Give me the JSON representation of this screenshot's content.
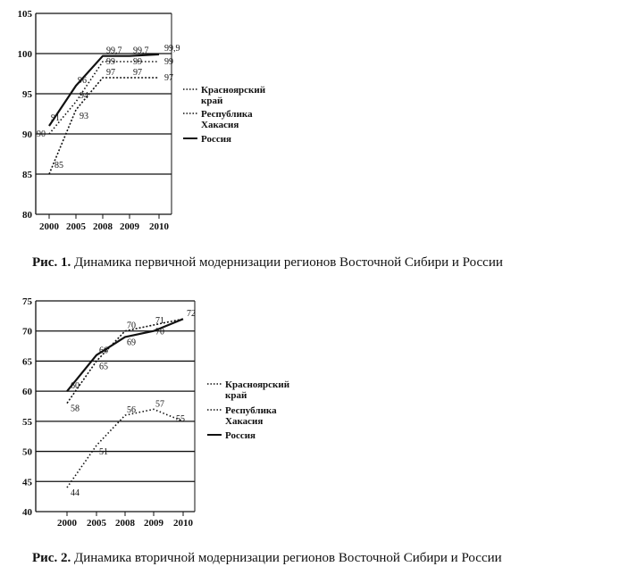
{
  "chart_data": [
    {
      "type": "line",
      "categories": [
        "2000",
        "2005",
        "2008",
        "2009",
        "2010"
      ],
      "ylim": [
        80,
        105
      ],
      "yticks": [
        80,
        85,
        90,
        95,
        100,
        105
      ],
      "grid": "horizontal",
      "legend_position": "right",
      "series": [
        {
          "name": "Красноярский край",
          "style": "dotted",
          "values": [
            85,
            93,
            97,
            97,
            97
          ],
          "labels": [
            "85",
            "93",
            "97",
            "97",
            "97"
          ]
        },
        {
          "name": "Республика Хакасия",
          "style": "dotted",
          "values": [
            90,
            94,
            99,
            99,
            99
          ],
          "labels": [
            "90",
            "94",
            "99",
            "99",
            "99"
          ]
        },
        {
          "name": "Россия",
          "style": "solid",
          "values": [
            91,
            96,
            99.7,
            99.7,
            99.9
          ],
          "labels": [
            "91",
            "96",
            "99,7",
            "99,7",
            "99,9"
          ]
        }
      ],
      "caption_bold": "Рис. 1.",
      "caption_text": " Динамика первичной модернизации регионов Восточной Сибири и России"
    },
    {
      "type": "line",
      "categories": [
        "2000",
        "2005",
        "2008",
        "2009",
        "2010"
      ],
      "ylim": [
        40,
        75
      ],
      "yticks": [
        40,
        45,
        50,
        55,
        60,
        65,
        70,
        75
      ],
      "grid": "horizontal",
      "legend_position": "right",
      "series": [
        {
          "name": "Красноярский край",
          "style": "dotted",
          "values": [
            58,
            65,
            70,
            71,
            72
          ],
          "labels": [
            "58",
            "65",
            "70",
            "71",
            "72"
          ]
        },
        {
          "name": "Республика Хакасия",
          "style": "dotted",
          "values": [
            44,
            51,
            56,
            57,
            55
          ],
          "labels": [
            "44",
            "51",
            "56",
            "57",
            "55"
          ]
        },
        {
          "name": "Россия",
          "style": "solid",
          "values": [
            60,
            66,
            69,
            70,
            72
          ],
          "labels": [
            "60",
            "66",
            "69",
            "70",
            ""
          ]
        }
      ],
      "caption_bold": "Рис. 2.",
      "caption_text": " Динамика вторичной модернизации регионов Восточной Сибири и России"
    }
  ]
}
